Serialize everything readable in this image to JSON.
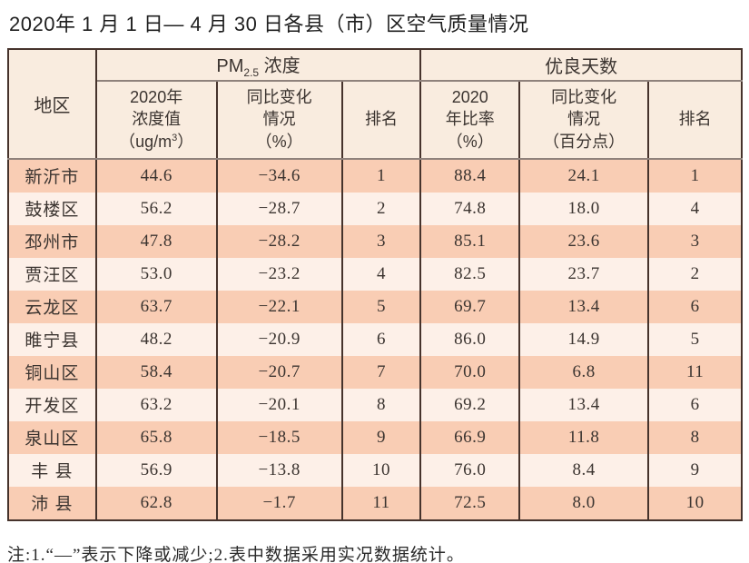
{
  "title": "2020年 1 月 1 日— 4 月 30 日各县（市）区空气质量情况",
  "table": {
    "headers": {
      "region": "地区",
      "pm_group": {
        "prefix": "PM",
        "sub": "2.5",
        "suffix": " 浓度"
      },
      "good_group": "优良天数",
      "pm_value": {
        "line1": "2020年",
        "line2": "浓度值",
        "line3_pre": "（ug/m",
        "line3_sup": "3",
        "line3_post": "）"
      },
      "pm_change": {
        "line1": "同比变化",
        "line2": "情况",
        "line3": "（%）"
      },
      "pm_rank": "排名",
      "good_rate": {
        "line1": "2020",
        "line2": "年比率",
        "line3": "（%）"
      },
      "good_change": {
        "line1": "同比变化",
        "line2": "情况",
        "line3": "（百分点）"
      },
      "good_rank": "排名"
    },
    "rows": [
      {
        "region": "新沂市",
        "pm_value": "44.6",
        "pm_change": "−34.6",
        "pm_rank": "1",
        "good_rate": "88.4",
        "good_change": "24.1",
        "good_rank": "1"
      },
      {
        "region": "鼓楼区",
        "pm_value": "56.2",
        "pm_change": "−28.7",
        "pm_rank": "2",
        "good_rate": "74.8",
        "good_change": "18.0",
        "good_rank": "4"
      },
      {
        "region": "邳州市",
        "pm_value": "47.8",
        "pm_change": "−28.2",
        "pm_rank": "3",
        "good_rate": "85.1",
        "good_change": "23.6",
        "good_rank": "3"
      },
      {
        "region": "贾汪区",
        "pm_value": "53.0",
        "pm_change": "−23.2",
        "pm_rank": "4",
        "good_rate": "82.5",
        "good_change": "23.7",
        "good_rank": "2"
      },
      {
        "region": "云龙区",
        "pm_value": "63.7",
        "pm_change": "−22.1",
        "pm_rank": "5",
        "good_rate": "69.7",
        "good_change": "13.4",
        "good_rank": "6"
      },
      {
        "region": "睢宁县",
        "pm_value": "48.2",
        "pm_change": "−20.9",
        "pm_rank": "6",
        "good_rate": "86.0",
        "good_change": "14.9",
        "good_rank": "5"
      },
      {
        "region": "铜山区",
        "pm_value": "58.4",
        "pm_change": "−20.7",
        "pm_rank": "7",
        "good_rate": "70.0",
        "good_change": "6.8",
        "good_rank": "11"
      },
      {
        "region": "开发区",
        "pm_value": "63.2",
        "pm_change": "−20.1",
        "pm_rank": "8",
        "good_rate": "69.2",
        "good_change": "13.4",
        "good_rank": "6"
      },
      {
        "region": "泉山区",
        "pm_value": "65.8",
        "pm_change": "−18.5",
        "pm_rank": "9",
        "good_rate": "66.9",
        "good_change": "11.8",
        "good_rank": "8"
      },
      {
        "region": "丰 县",
        "pm_value": "56.9",
        "pm_change": "−13.8",
        "pm_rank": "10",
        "good_rate": "76.0",
        "good_change": "8.4",
        "good_rank": "9"
      },
      {
        "region": "沛 县",
        "pm_value": "62.8",
        "pm_change": "−1.7",
        "pm_rank": "11",
        "good_rate": "72.5",
        "good_change": "8.0",
        "good_rank": "10"
      }
    ],
    "colors": {
      "row_odd": "#f9cdb4",
      "row_even": "#fdf0e8",
      "header_bg": "#f9ecdf",
      "border_dark": "#46332c",
      "border_light": "#8f827c"
    }
  },
  "note": "注:1.“—”表示下降或减少;2.表中数据采用实况数据统计。"
}
